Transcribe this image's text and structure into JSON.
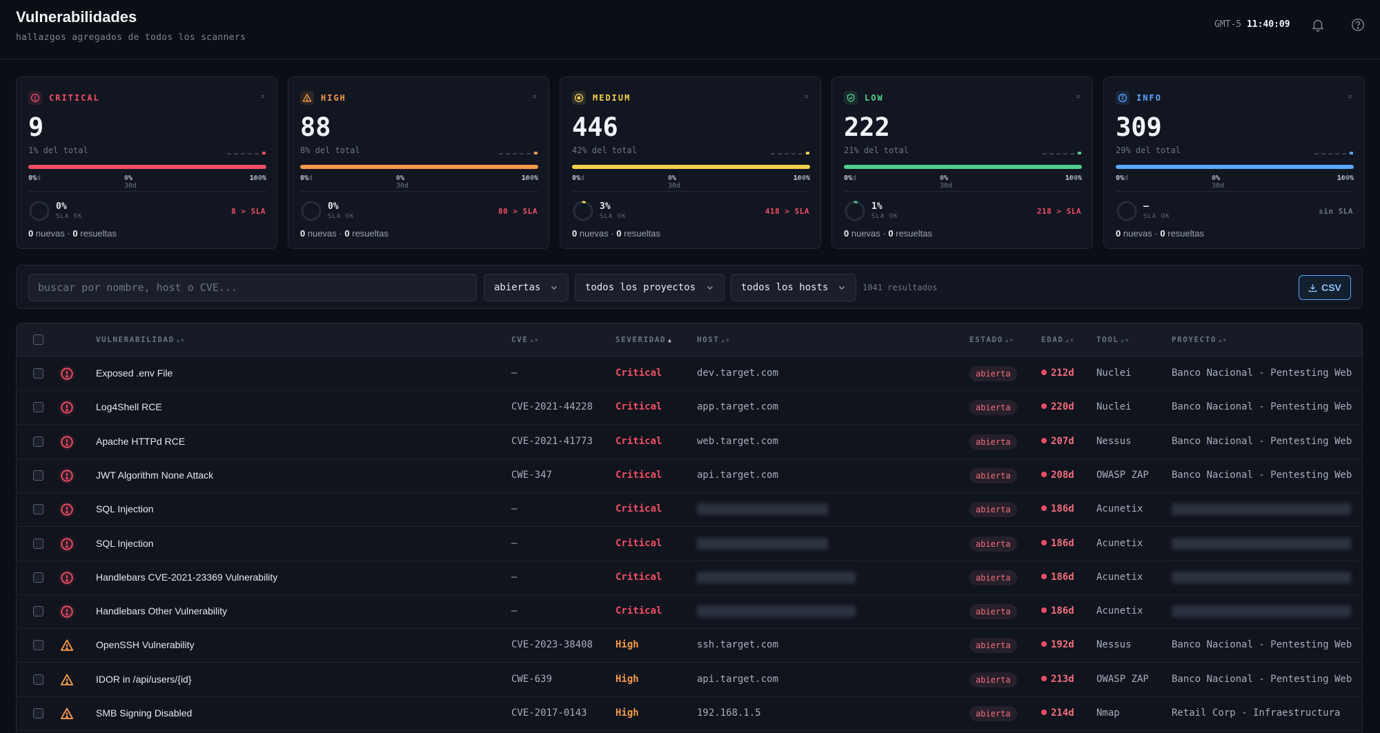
{
  "header": {
    "title": "Vulnerabilidades",
    "subtitle": "hallazgos agregados de todos los scanners",
    "timezone": "GMT-5",
    "time": "11:40:09"
  },
  "cards": [
    {
      "key": "critical",
      "label": "CRITICAL",
      "icon": "alert-circle-icon",
      "color": "#f04e66",
      "count": "9",
      "pct": "1% del total",
      "age_lt7": "0%",
      "age_8_30": "0%",
      "age_gt30": "100%",
      "sla_pct": "0%",
      "sla_progress": 0,
      "sla_ok": "SLA OK",
      "sla_over": "8 > SLA",
      "sla_over_color": "#f04e66",
      "nuevas": "0",
      "resueltas": "0"
    },
    {
      "key": "high",
      "label": "HIGH",
      "icon": "warning-triangle-icon",
      "color": "#f59a4a",
      "count": "88",
      "pct": "8% del total",
      "age_lt7": "0%",
      "age_8_30": "0%",
      "age_gt30": "100%",
      "sla_pct": "0%",
      "sla_progress": 0,
      "sla_ok": "SLA OK",
      "sla_over": "80 > SLA",
      "sla_over_color": "#f04e66",
      "nuevas": "0",
      "resueltas": "0"
    },
    {
      "key": "medium",
      "label": "MEDIUM",
      "icon": "info-circle-icon",
      "color": "#f5d04a",
      "count": "446",
      "pct": "42% del total",
      "age_lt7": "0%",
      "age_8_30": "0%",
      "age_gt30": "100%",
      "sla_pct": "3%",
      "sla_progress": 0.03,
      "sla_ok": "SLA OK",
      "sla_over": "418 > SLA",
      "sla_over_color": "#f04e66",
      "nuevas": "0",
      "resueltas": "0"
    },
    {
      "key": "low",
      "label": "LOW",
      "icon": "shield-check-icon",
      "color": "#4fd08e",
      "count": "222",
      "pct": "21% del total",
      "age_lt7": "0%",
      "age_8_30": "0%",
      "age_gt30": "100%",
      "sla_pct": "1%",
      "sla_progress": 0.01,
      "sla_ok": "SLA OK",
      "sla_over": "218 > SLA",
      "sla_over_color": "#f04e66",
      "nuevas": "0",
      "resueltas": "0"
    },
    {
      "key": "info",
      "label": "INFO",
      "icon": "info-icon",
      "color": "#5aa7ff",
      "count": "309",
      "pct": "29% del total",
      "age_lt7": "0%",
      "age_8_30": "0%",
      "age_gt30": "100%",
      "sla_pct": "—",
      "sla_progress": 0,
      "sla_ok": "SLA OK",
      "sla_over": "sin SLA",
      "sla_over_color": "#6d7585",
      "nuevas": "0",
      "resueltas": "0"
    }
  ],
  "labels": {
    "age_lt7": "<7d",
    "age_8_30": "8-30d",
    "age_gt30": ">30d",
    "nuevas": "nuevas",
    "resueltas": "resueltas",
    "sep": "·"
  },
  "filters": {
    "search_placeholder": "buscar por nombre, host o CVE...",
    "status": "abiertas",
    "project": "todos los proyectos",
    "host": "todos los hosts",
    "results": "1041 resultados",
    "csv": "CSV"
  },
  "table": {
    "columns": [
      "VULNERABILIDAD",
      "CVE",
      "SEVERIDAD",
      "HOST",
      "ESTADO",
      "EDAD",
      "TOOL",
      "PROYECTO"
    ],
    "rows": [
      {
        "sev": "critical",
        "name": "Exposed .env File",
        "cve": "—",
        "severity": "Critical",
        "host": "dev.target.com",
        "state": "abierta",
        "age": "212d",
        "tool": "Nuclei",
        "project": "Banco Nacional - Pentesting Web"
      },
      {
        "sev": "critical",
        "name": "Log4Shell RCE",
        "cve": "CVE-2021-44228",
        "severity": "Critical",
        "host": "app.target.com",
        "state": "abierta",
        "age": "220d",
        "tool": "Nuclei",
        "project": "Banco Nacional - Pentesting Web"
      },
      {
        "sev": "critical",
        "name": "Apache HTTPd RCE",
        "cve": "CVE-2021-41773",
        "severity": "Critical",
        "host": "web.target.com",
        "state": "abierta",
        "age": "207d",
        "tool": "Nessus",
        "project": "Banco Nacional - Pentesting Web"
      },
      {
        "sev": "critical",
        "name": "JWT Algorithm None Attack",
        "cve": "CWE-347",
        "severity": "Critical",
        "host": "api.target.com",
        "state": "abierta",
        "age": "208d",
        "tool": "OWASP ZAP",
        "project": "Banco Nacional - Pentesting Web"
      },
      {
        "sev": "critical",
        "name": "SQL Injection",
        "cve": "—",
        "severity": "Critical",
        "host": "",
        "state": "abierta",
        "age": "186d",
        "tool": "Acunetix",
        "project": ""
      },
      {
        "sev": "critical",
        "name": "SQL Injection",
        "cve": "—",
        "severity": "Critical",
        "host": "",
        "state": "abierta",
        "age": "186d",
        "tool": "Acunetix",
        "project": ""
      },
      {
        "sev": "critical",
        "name": "Handlebars CVE-2021-23369 Vulnerability",
        "cve": "—",
        "severity": "Critical",
        "host": "",
        "state": "abierta",
        "age": "186d",
        "tool": "Acunetix",
        "project": ""
      },
      {
        "sev": "critical",
        "name": "Handlebars Other Vulnerability",
        "cve": "—",
        "severity": "Critical",
        "host": "",
        "state": "abierta",
        "age": "186d",
        "tool": "Acunetix",
        "project": ""
      },
      {
        "sev": "high",
        "name": "OpenSSH Vulnerability",
        "cve": "CVE-2023-38408",
        "severity": "High",
        "host": "ssh.target.com",
        "state": "abierta",
        "age": "192d",
        "tool": "Nessus",
        "project": "Banco Nacional - Pentesting Web"
      },
      {
        "sev": "high",
        "name": "IDOR in /api/users/{id}",
        "cve": "CWE-639",
        "severity": "High",
        "host": "api.target.com",
        "state": "abierta",
        "age": "213d",
        "tool": "OWASP ZAP",
        "project": "Banco Nacional - Pentesting Web"
      },
      {
        "sev": "high",
        "name": "SMB Signing Disabled",
        "cve": "CVE-2017-0143",
        "severity": "High",
        "host": "192.168.1.5",
        "state": "abierta",
        "age": "214d",
        "tool": "Nmap",
        "project": "Retail Corp - Infraestructura"
      }
    ]
  },
  "colors": {
    "critical": "#f04e66",
    "high": "#f59a4a",
    "medium": "#f5d04a",
    "low": "#4fd08e",
    "info": "#5aa7ff",
    "accent": "#5aa7ff"
  }
}
